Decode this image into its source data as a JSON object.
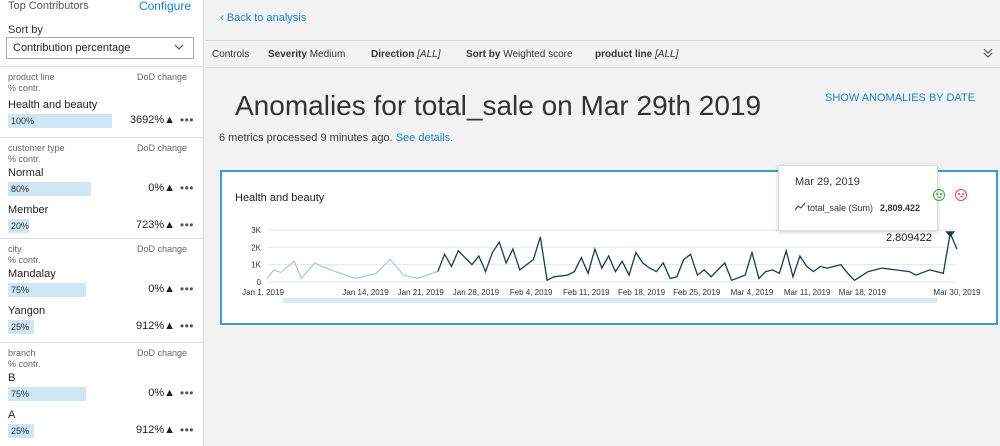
{
  "left_panel": {
    "title": "Top Contributors",
    "configure": "Configure",
    "sort_by_label": "Sort by",
    "sort_by_value": "Contribution percentage",
    "groups": [
      {
        "header": "product line",
        "dod": "DoD change",
        "sub": "% contr.",
        "items": [
          {
            "name": "Health and beauty",
            "pct": "100%",
            "fill": 1.0,
            "change": "3692%▲"
          }
        ]
      },
      {
        "header": "customer type",
        "dod": "DoD change",
        "sub": "% contr.",
        "items": [
          {
            "name": "Normal",
            "pct": "80%",
            "fill": 0.8,
            "change": "0%▲"
          },
          {
            "name": "Member",
            "pct": "20%",
            "fill": 0.2,
            "change": "723%▲"
          }
        ]
      },
      {
        "header": "city",
        "dod": "DoD change",
        "sub": "% contr.",
        "items": [
          {
            "name": "Mandalay",
            "pct": "75%",
            "fill": 0.75,
            "change": "0%▲"
          },
          {
            "name": "Yangon",
            "pct": "25%",
            "fill": 0.25,
            "change": "912%▲"
          }
        ]
      },
      {
        "header": "branch",
        "dod": "DoD change",
        "sub": "% contr.",
        "items": [
          {
            "name": "B",
            "pct": "75%",
            "fill": 0.75,
            "change": "0%▲"
          },
          {
            "name": "A",
            "pct": "25%",
            "fill": 0.25,
            "change": "912%▲"
          }
        ]
      }
    ],
    "more_glyph": "•••"
  },
  "main": {
    "back_link": "Back to analysis",
    "controls": {
      "label": "Controls",
      "severity_key": "Severity",
      "severity_val": "Medium",
      "direction_key": "Direction",
      "direction_val": "[ALL]",
      "sort_key": "Sort by",
      "sort_val": "Weighted score",
      "pline_key": "product line",
      "pline_val": "[ALL]"
    },
    "title": "Anomalies for total_sale on Mar 29th 2019",
    "show_by_date": "SHOW ANOMALIES BY DATE",
    "subline_text": "6 metrics processed 9 minutes ago.",
    "subline_link": "See details.",
    "card": {
      "title": "Health and beauty",
      "tooltip_date": "Mar 29, 2019",
      "tooltip_series": "total_sale (Sum)",
      "tooltip_value": "2,809.422",
      "peak_label": "2.809422"
    }
  },
  "chart_data": {
    "type": "line",
    "ylabels": [
      "3K",
      "2K",
      "1K",
      "0"
    ],
    "ylim": [
      0,
      3000
    ],
    "xlabels": [
      "Jan 1, 2019",
      "Jan 14, 2019",
      "Jan 21, 2019",
      "Jan 28, 2019",
      "Feb 4, 2019",
      "Feb 11, 2019",
      "Feb 18, 2019",
      "Feb 25, 2019",
      "Mar 4, 2019",
      "Mar 11, 2019",
      "Mar 18, 2019",
      "Mar 30, 2019"
    ],
    "x_days": [
      0,
      13,
      20,
      27,
      34,
      41,
      48,
      55,
      62,
      69,
      76,
      88
    ],
    "x_range_days": [
      0,
      88
    ],
    "history_series": {
      "points": [
        [
          0,
          200
        ],
        [
          1,
          700
        ],
        [
          2,
          550
        ],
        [
          4,
          1200
        ],
        [
          5,
          200
        ],
        [
          7,
          1100
        ],
        [
          8,
          900
        ],
        [
          10,
          600
        ],
        [
          13,
          200
        ],
        [
          16,
          500
        ],
        [
          18,
          1300
        ],
        [
          20,
          400
        ],
        [
          22,
          200
        ],
        [
          25,
          600
        ]
      ],
      "color": "#a8c7d8"
    },
    "main_series": {
      "points": [
        [
          25,
          600
        ],
        [
          26,
          1600
        ],
        [
          27,
          900
        ],
        [
          28,
          1800
        ],
        [
          30,
          1000
        ],
        [
          31,
          1500
        ],
        [
          32,
          600
        ],
        [
          33,
          1700
        ],
        [
          34,
          2300
        ],
        [
          35,
          1100
        ],
        [
          36,
          1900
        ],
        [
          37,
          700
        ],
        [
          39,
          1300
        ],
        [
          40,
          2600
        ],
        [
          41,
          100
        ],
        [
          42,
          300
        ],
        [
          44,
          400
        ],
        [
          45,
          600
        ],
        [
          46,
          1400
        ],
        [
          47,
          500
        ],
        [
          48,
          1900
        ],
        [
          49,
          800
        ],
        [
          50,
          1500
        ],
        [
          51,
          600
        ],
        [
          52,
          1200
        ],
        [
          53,
          400
        ],
        [
          54,
          1700
        ],
        [
          55,
          1100
        ],
        [
          56,
          800
        ],
        [
          57,
          600
        ],
        [
          58,
          1100
        ],
        [
          59,
          200
        ],
        [
          60,
          300
        ],
        [
          61,
          1300
        ],
        [
          62,
          1600
        ],
        [
          63,
          400
        ],
        [
          64,
          700
        ],
        [
          65,
          300
        ],
        [
          67,
          1100
        ],
        [
          68,
          100
        ],
        [
          70,
          400
        ],
        [
          71,
          1700
        ],
        [
          72,
          200
        ],
        [
          73,
          600
        ],
        [
          74,
          700
        ],
        [
          75,
          500
        ],
        [
          76,
          1800
        ],
        [
          77,
          300
        ],
        [
          78,
          1500
        ],
        [
          79,
          900
        ],
        [
          80,
          600
        ],
        [
          81,
          900
        ],
        [
          82,
          800
        ],
        [
          83,
          900
        ],
        [
          84,
          1000
        ],
        [
          85,
          500
        ],
        [
          86,
          100
        ],
        [
          88,
          600
        ],
        [
          90,
          800
        ],
        [
          92,
          700
        ],
        [
          94,
          600
        ],
        [
          95,
          400
        ],
        [
          97,
          700
        ],
        [
          99,
          500
        ],
        [
          100,
          2809
        ],
        [
          101,
          1900
        ]
      ],
      "color": "#1e3c50"
    },
    "main_x_range": [
      0,
      101
    ]
  }
}
